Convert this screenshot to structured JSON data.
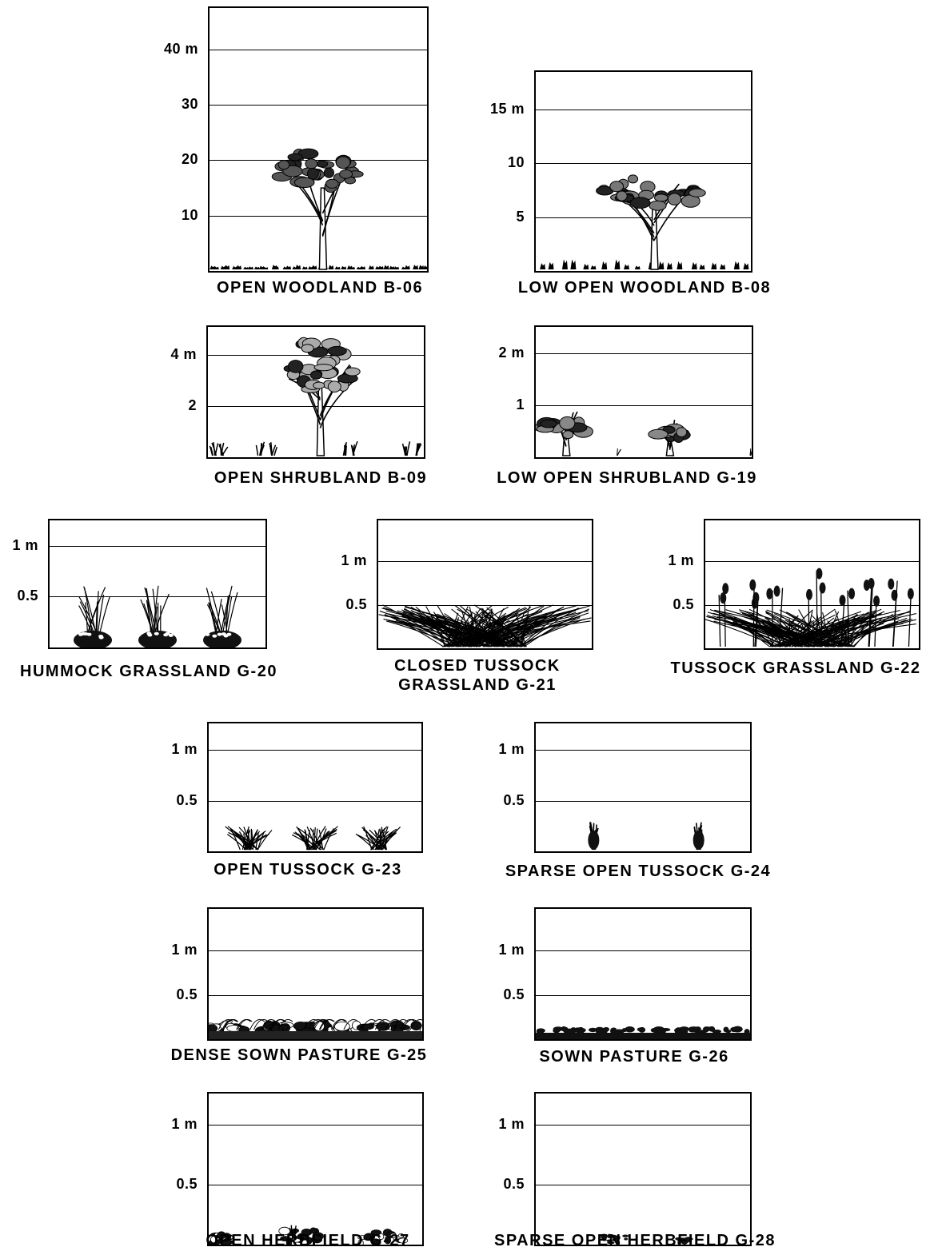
{
  "panels": [
    {
      "id": "b06",
      "caption": "OPEN WOODLAND B-06",
      "ticks": [
        {
          "label": "40 m",
          "value": 40
        },
        {
          "label": "30",
          "value": 30
        },
        {
          "label": "20",
          "value": 20
        },
        {
          "label": "10",
          "value": 10
        }
      ],
      "axis_max": 47.5,
      "vegetation": "tree-icon"
    },
    {
      "id": "b08",
      "caption": "LOW OPEN WOODLAND B-08",
      "ticks": [
        {
          "label": "15 m",
          "value": 15
        },
        {
          "label": "10",
          "value": 10
        },
        {
          "label": "5",
          "value": 5
        }
      ],
      "axis_max": 18.5,
      "vegetation": "low-tree-icon"
    },
    {
      "id": "b09",
      "caption": "OPEN SHRUBLAND B-09",
      "ticks": [
        {
          "label": "4 m",
          "value": 4
        },
        {
          "label": "2",
          "value": 2
        }
      ],
      "axis_max": 5.1,
      "vegetation": "shrub-icon"
    },
    {
      "id": "g19",
      "caption": "LOW OPEN SHRUBLAND G-19",
      "ticks": [
        {
          "label": "2 m",
          "value": 2
        },
        {
          "label": "1",
          "value": 1
        }
      ],
      "axis_max": 2.5,
      "vegetation": "low-shrub-icon"
    },
    {
      "id": "g20",
      "caption": "HUMMOCK GRASSLAND G-20",
      "ticks": [
        {
          "label": "1 m",
          "value": 1
        },
        {
          "label": "0.5",
          "value": 0.5
        }
      ],
      "axis_max": 1.25,
      "vegetation": "hummock-grass-icon"
    },
    {
      "id": "g21",
      "caption": "CLOSED TUSSOCK\nGRASSLAND G-21",
      "ticks": [
        {
          "label": "1 m",
          "value": 1
        },
        {
          "label": "0.5",
          "value": 0.5
        }
      ],
      "axis_max": 1.47,
      "vegetation": "closed-tussock-icon"
    },
    {
      "id": "g22",
      "caption": "TUSSOCK GRASSLAND G-22",
      "ticks": [
        {
          "label": "1 m",
          "value": 1
        },
        {
          "label": "0.5",
          "value": 0.5
        }
      ],
      "axis_max": 1.47,
      "vegetation": "tussock-grass-icon"
    },
    {
      "id": "g23",
      "caption": "OPEN TUSSOCK G-23",
      "ticks": [
        {
          "label": "1 m",
          "value": 1
        },
        {
          "label": "0.5",
          "value": 0.5
        }
      ],
      "axis_max": 1.26,
      "vegetation": "open-tussock-icon"
    },
    {
      "id": "g24",
      "caption": "SPARSE OPEN TUSSOCK G-24",
      "ticks": [
        {
          "label": "1 m",
          "value": 1
        },
        {
          "label": "0.5",
          "value": 0.5
        }
      ],
      "axis_max": 1.26,
      "vegetation": "sparse-tussock-icon"
    },
    {
      "id": "g25",
      "caption": "DENSE SOWN PASTURE G-25",
      "ticks": [
        {
          "label": "1 m",
          "value": 1
        },
        {
          "label": "0.5",
          "value": 0.5
        }
      ],
      "axis_max": 1.47,
      "vegetation": "dense-pasture-icon"
    },
    {
      "id": "g26",
      "caption": "SOWN PASTURE G-26",
      "ticks": [
        {
          "label": "1 m",
          "value": 1
        },
        {
          "label": "0.5",
          "value": 0.5
        }
      ],
      "axis_max": 1.47,
      "vegetation": "pasture-icon"
    },
    {
      "id": "g27",
      "caption": "OPEN HERBFIELD G-27",
      "ticks": [
        {
          "label": "1 m",
          "value": 1
        },
        {
          "label": "0.5",
          "value": 0.5
        }
      ],
      "axis_max": 1.26,
      "vegetation": "open-herbfield-icon"
    },
    {
      "id": "g28",
      "caption": "SPARSE OPEN HERBFIELD G-28",
      "ticks": [
        {
          "label": "1 m",
          "value": 1
        },
        {
          "label": "0.5",
          "value": 0.5
        }
      ],
      "axis_max": 1.26,
      "vegetation": "sparse-herbfield-icon"
    }
  ]
}
